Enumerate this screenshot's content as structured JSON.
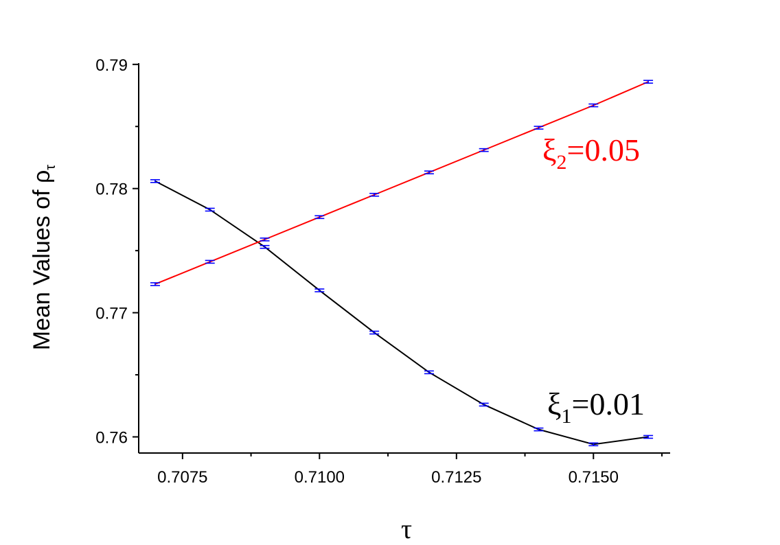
{
  "chart_data": {
    "type": "line",
    "xlabel": "τ",
    "ylabel": {
      "main": "Mean Values of ρ",
      "subscript": "τ"
    },
    "xlim": [
      0.7067,
      0.7164
    ],
    "ylim": [
      0.7587,
      0.7901
    ],
    "x_ticks": [
      0.7075,
      0.71,
      0.7125,
      0.715
    ],
    "x_tick_labels": [
      "0.7075",
      "0.7100",
      "0.7125",
      "0.7150"
    ],
    "y_ticks": [
      0.76,
      0.77,
      0.78,
      0.79
    ],
    "y_tick_labels": [
      "0.76",
      "0.77",
      "0.78",
      "0.79"
    ],
    "x": [
      0.707,
      0.708,
      0.709,
      0.71,
      0.711,
      0.712,
      0.713,
      0.714,
      0.715,
      0.716
    ],
    "series": [
      {
        "name": "ξ1=0.01",
        "label": {
          "base": "ξ",
          "sub": "1",
          "rest": "=0.01"
        },
        "color": "#000000",
        "values": [
          0.7806,
          0.7783,
          0.7753,
          0.7718,
          0.7684,
          0.7652,
          0.7626,
          0.7606,
          0.7594,
          0.76
        ]
      },
      {
        "name": "ξ2=0.05",
        "label": {
          "base": "ξ",
          "sub": "2",
          "rest": "=0.05"
        },
        "color": "#ff0000",
        "values": [
          0.7723,
          0.7741,
          0.7759,
          0.7777,
          0.7795,
          0.7813,
          0.7831,
          0.7849,
          0.7867,
          0.7886
        ]
      }
    ],
    "error_bar_color": "#0000ff",
    "grid": false,
    "legend": "inline labels"
  }
}
